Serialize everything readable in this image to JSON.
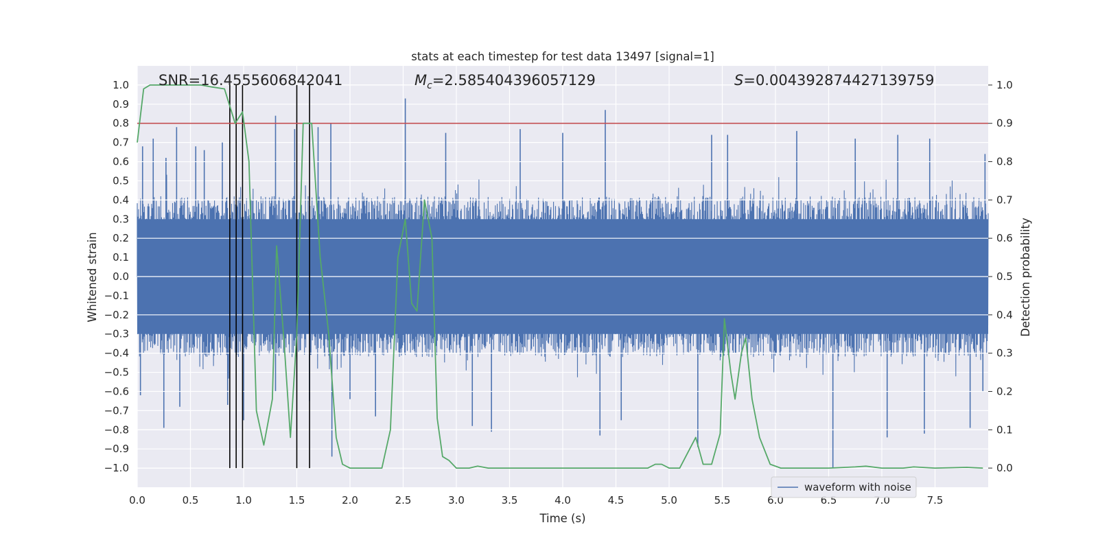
{
  "chart_data": {
    "type": "line",
    "title": "stats at each timestep for test data 13497 [signal=1]",
    "xlabel": "Time (s)",
    "ylabel": "Whitened strain",
    "y2label": "Detection probability",
    "xlim": [
      0.0,
      8.0
    ],
    "ylim": [
      -1.1,
      1.1
    ],
    "y2lim": [
      -0.05,
      1.05
    ],
    "x_ticks": [
      "0.0",
      "0.5",
      "1.0",
      "1.5",
      "2.0",
      "2.5",
      "3.0",
      "3.5",
      "4.0",
      "4.5",
      "5.0",
      "5.5",
      "6.0",
      "6.5",
      "7.0",
      "7.5"
    ],
    "y_ticks": [
      "1.0",
      "0.9",
      "0.8",
      "0.7",
      "0.6",
      "0.5",
      "0.4",
      "0.3",
      "0.2",
      "0.1",
      "0.0",
      "−0.1",
      "−0.2",
      "−0.3",
      "−0.4",
      "−0.5",
      "−0.6",
      "−0.7",
      "−0.8",
      "−0.9",
      "−1.0"
    ],
    "y2_ticks": [
      "1.0",
      "0.9",
      "0.8",
      "0.7",
      "0.6",
      "0.5",
      "0.4",
      "0.3",
      "0.2",
      "0.1",
      "0.0"
    ],
    "annotations": {
      "snr": "SNR=16.4555606842041",
      "mc_symbol": "M",
      "mc_subscript": "c",
      "mc_value": "=2.585404396057129",
      "s_symbol": "S",
      "s_value": "=0.004392874427139759"
    },
    "legend": {
      "label": "waveform with noise",
      "location": "lower-right"
    },
    "threshold": {
      "value": 0.9,
      "axis": "detection probability",
      "color": "#c44e52"
    },
    "vertical_markers": [
      0.87,
      0.93,
      0.99,
      1.5,
      1.62
    ],
    "waveform": {
      "name": "waveform with noise",
      "color": "#4c72b0",
      "envelope_upper": 0.42,
      "envelope_lower": -0.42,
      "spikes": [
        [
          0.05,
          0.68
        ],
        [
          0.15,
          0.72
        ],
        [
          0.27,
          0.62
        ],
        [
          0.37,
          0.78
        ],
        [
          0.55,
          0.68
        ],
        [
          0.63,
          0.66
        ],
        [
          0.8,
          0.7
        ],
        [
          1.3,
          0.84
        ],
        [
          1.48,
          0.77
        ],
        [
          1.7,
          0.78
        ],
        [
          1.82,
          0.8
        ],
        [
          2.52,
          0.93
        ],
        [
          2.9,
          0.75
        ],
        [
          3.6,
          0.77
        ],
        [
          4.0,
          0.75
        ],
        [
          4.4,
          0.87
        ],
        [
          5.4,
          0.74
        ],
        [
          5.55,
          0.74
        ],
        [
          6.2,
          0.76
        ],
        [
          6.75,
          0.72
        ],
        [
          7.15,
          0.74
        ],
        [
          7.45,
          0.72
        ],
        [
          7.97,
          0.64
        ],
        [
          0.03,
          -0.62
        ],
        [
          0.25,
          -0.79
        ],
        [
          0.4,
          -0.68
        ],
        [
          0.85,
          -0.67
        ],
        [
          1.0,
          -0.75
        ],
        [
          1.3,
          -0.6
        ],
        [
          1.62,
          -0.65
        ],
        [
          1.83,
          -0.94
        ],
        [
          2.0,
          -0.64
        ],
        [
          2.24,
          -0.73
        ],
        [
          3.15,
          -0.78
        ],
        [
          3.33,
          -0.81
        ],
        [
          4.35,
          -0.83
        ],
        [
          4.55,
          -0.75
        ],
        [
          5.27,
          -0.89
        ],
        [
          6.54,
          -1.0
        ],
        [
          7.05,
          -0.84
        ],
        [
          7.4,
          -0.82
        ],
        [
          7.83,
          -0.79
        ],
        [
          7.95,
          -0.6
        ]
      ]
    },
    "detection_probability": {
      "name": "detection probability",
      "color": "#55a868",
      "x": [
        0.0,
        0.06,
        0.12,
        0.2,
        0.4,
        0.6,
        0.7,
        0.82,
        0.92,
        0.99,
        1.05,
        1.12,
        1.19,
        1.27,
        1.31,
        1.38,
        1.44,
        1.5,
        1.56,
        1.64,
        1.72,
        1.8,
        1.87,
        1.93,
        2.0,
        2.1,
        2.2,
        2.3,
        2.38,
        2.45,
        2.52,
        2.58,
        2.63,
        2.7,
        2.77,
        2.82,
        2.87,
        2.93,
        3.0,
        3.07,
        3.12,
        3.2,
        3.3,
        3.5,
        3.7,
        3.9,
        4.0,
        4.3,
        4.6,
        4.8,
        4.87,
        4.93,
        5.0,
        5.1,
        5.25,
        5.32,
        5.4,
        5.48,
        5.52,
        5.58,
        5.62,
        5.68,
        5.72,
        5.78,
        5.85,
        5.95,
        6.05,
        6.2,
        6.5,
        6.75,
        6.85,
        7.0,
        7.2,
        7.3,
        7.5,
        7.8,
        7.95
      ],
      "y": [
        0.85,
        0.99,
        1.0,
        1.0,
        1.0,
        1.0,
        0.995,
        0.99,
        0.9,
        0.93,
        0.8,
        0.15,
        0.06,
        0.18,
        0.58,
        0.33,
        0.08,
        0.35,
        0.9,
        0.9,
        0.55,
        0.35,
        0.08,
        0.01,
        0.0,
        0.0,
        0.0,
        0.0,
        0.1,
        0.55,
        0.65,
        0.43,
        0.41,
        0.7,
        0.6,
        0.13,
        0.03,
        0.02,
        0.0,
        0.0,
        0.0,
        0.005,
        0.0,
        0.0,
        0.0,
        0.0,
        0.0,
        0.0,
        0.0,
        0.0,
        0.01,
        0.01,
        0.0,
        0.0,
        0.08,
        0.01,
        0.01,
        0.09,
        0.39,
        0.25,
        0.18,
        0.3,
        0.34,
        0.18,
        0.08,
        0.01,
        0.0,
        0.0,
        0.0,
        0.003,
        0.005,
        0.0,
        0.0,
        0.003,
        0.0,
        0.002,
        0.0
      ]
    }
  }
}
